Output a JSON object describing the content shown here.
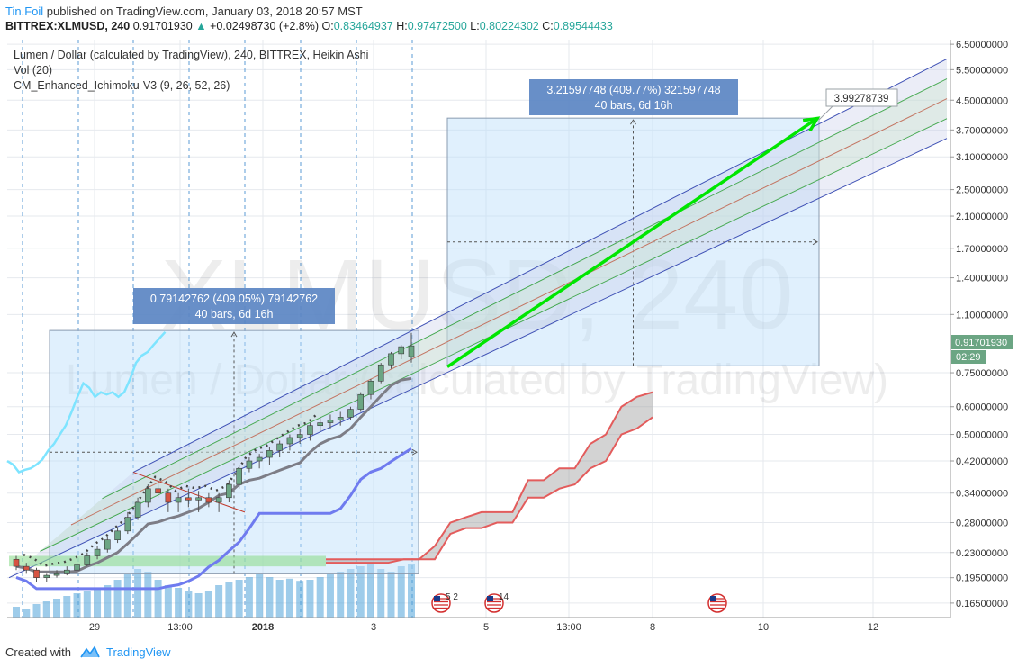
{
  "header": {
    "author": "Tin.Foil",
    "published_text": "published on TradingView.com, January 03, 2018 20:57 MST",
    "symbol": "BITTREX:XLMUSD, 240",
    "last": "0.91701930",
    "change_arrow": "▲",
    "change": "+0.02498730 (+2.8%)",
    "open_label": "O:",
    "open": "0.83464937",
    "high_label": "H:",
    "high": "0.97472500",
    "low_label": "L:",
    "low": "0.80224302",
    "close_label": "C:",
    "close": "0.89544433"
  },
  "legend": {
    "title": "Lumen / Dollar (calculated by TradingView), 240, BITTREX, Heikin Ashi",
    "vol": "Vol (20)",
    "ichimoku": "CM_Enhanced_Ichimoku-V3 (9, 26, 52, 26)"
  },
  "watermark": {
    "symbol": "XLMUSD, 240",
    "name": "Lumen / Dollar (calculated by TradingView)"
  },
  "price_axis": {
    "ticks": [
      "6.50000000",
      "5.50000000",
      "4.50000000",
      "3.70000000",
      "3.10000000",
      "2.50000000",
      "2.10000000",
      "1.70000000",
      "1.40000000",
      "1.10000000",
      "0.75000000",
      "0.60000000",
      "0.50000000",
      "0.42000000",
      "0.34000000",
      "0.28000000",
      "0.23000000",
      "0.19500000",
      "0.16500000"
    ],
    "current_price": "0.91701930",
    "countdown": "02:29"
  },
  "time_axis": {
    "ticks": [
      "29",
      "13:00",
      "2018",
      "3",
      "5",
      "13:00",
      "8",
      "10",
      "12"
    ]
  },
  "measurements": [
    {
      "line1": "0.79142762 (409.05%) 79142762",
      "line2": "40 bars, 6d 16h"
    },
    {
      "line1": "3.21597748 (409.77%) 321597748",
      "line2": "40 bars, 6d 16h"
    }
  ],
  "target_label": "3.99278739",
  "events": [
    {
      "icon": "us-flag-icon",
      "count": "5 2"
    },
    {
      "icon": "us-flag-icon",
      "count": "14"
    },
    {
      "icon": "us-flag-icon",
      "count": ""
    }
  ],
  "colors": {
    "bull": "#6ba583",
    "bear": "#d75442",
    "grid": "#e6e9ee",
    "channel": "#3f51b5",
    "accent": "#2196f3",
    "arrow": "#00e600",
    "cloud": "#e35c5c",
    "conversion": "#6f7bef",
    "lagging": "#7ee4ff"
  },
  "footer": {
    "created": "Created with",
    "brand": "TradingView"
  },
  "chart_data": {
    "type": "candlestick",
    "style": "Heikin Ashi",
    "scale": "log",
    "symbol": "BITTREX:XLMUSD",
    "interval": "240",
    "ylim": [
      0.15,
      6.7
    ],
    "yticks": [
      6.5,
      5.5,
      4.5,
      3.7,
      3.1,
      2.5,
      2.1,
      1.7,
      1.4,
      1.1,
      0.75,
      0.6,
      0.5,
      0.42,
      0.34,
      0.28,
      0.23,
      0.195,
      0.165
    ],
    "last_price": 0.9170193,
    "candles": [
      [
        0.22,
        0.225,
        0.205,
        0.21
      ],
      [
        0.21,
        0.215,
        0.2,
        0.205
      ],
      [
        0.205,
        0.208,
        0.19,
        0.195
      ],
      [
        0.195,
        0.2,
        0.19,
        0.198
      ],
      [
        0.198,
        0.205,
        0.195,
        0.2
      ],
      [
        0.2,
        0.21,
        0.198,
        0.205
      ],
      [
        0.205,
        0.215,
        0.2,
        0.212
      ],
      [
        0.212,
        0.23,
        0.21,
        0.225
      ],
      [
        0.225,
        0.24,
        0.22,
        0.235
      ],
      [
        0.235,
        0.255,
        0.23,
        0.25
      ],
      [
        0.25,
        0.27,
        0.245,
        0.265
      ],
      [
        0.265,
        0.3,
        0.26,
        0.29
      ],
      [
        0.29,
        0.33,
        0.285,
        0.32
      ],
      [
        0.32,
        0.36,
        0.31,
        0.35
      ],
      [
        0.35,
        0.37,
        0.33,
        0.34
      ],
      [
        0.34,
        0.35,
        0.3,
        0.32
      ],
      [
        0.32,
        0.34,
        0.3,
        0.33
      ],
      [
        0.33,
        0.35,
        0.31,
        0.325
      ],
      [
        0.325,
        0.345,
        0.3,
        0.33
      ],
      [
        0.33,
        0.34,
        0.31,
        0.32
      ],
      [
        0.32,
        0.34,
        0.3,
        0.33
      ],
      [
        0.33,
        0.37,
        0.32,
        0.36
      ],
      [
        0.36,
        0.41,
        0.35,
        0.4
      ],
      [
        0.4,
        0.43,
        0.39,
        0.42
      ],
      [
        0.42,
        0.44,
        0.4,
        0.43
      ],
      [
        0.43,
        0.46,
        0.41,
        0.45
      ],
      [
        0.45,
        0.48,
        0.43,
        0.47
      ],
      [
        0.47,
        0.5,
        0.45,
        0.49
      ],
      [
        0.49,
        0.52,
        0.47,
        0.5
      ],
      [
        0.5,
        0.54,
        0.48,
        0.53
      ],
      [
        0.53,
        0.56,
        0.51,
        0.54
      ],
      [
        0.54,
        0.57,
        0.52,
        0.55
      ],
      [
        0.55,
        0.58,
        0.53,
        0.56
      ],
      [
        0.56,
        0.6,
        0.55,
        0.59
      ],
      [
        0.59,
        0.66,
        0.58,
        0.65
      ],
      [
        0.65,
        0.72,
        0.63,
        0.71
      ],
      [
        0.71,
        0.8,
        0.7,
        0.79
      ],
      [
        0.79,
        0.86,
        0.77,
        0.85
      ],
      [
        0.85,
        0.9,
        0.82,
        0.89
      ],
      [
        0.834,
        0.975,
        0.802,
        0.895
      ]
    ],
    "volume": [
      0.2,
      0.15,
      0.25,
      0.3,
      0.35,
      0.4,
      0.45,
      0.5,
      0.55,
      0.6,
      0.7,
      0.8,
      0.9,
      0.85,
      0.7,
      0.6,
      0.55,
      0.5,
      0.45,
      0.5,
      0.6,
      0.65,
      0.7,
      0.75,
      0.8,
      0.75,
      0.7,
      0.72,
      0.68,
      0.7,
      0.75,
      0.8,
      0.85,
      0.9,
      0.95,
      1.0,
      0.9,
      0.85,
      0.95,
      1.0
    ],
    "channel": {
      "lower_start": 0.195,
      "lower_end": 3.5,
      "upper_start": 0.39,
      "upper_end": 5.9
    },
    "projection_arrow": {
      "from": 0.78,
      "to": 3.99278739
    },
    "measure_ranges": [
      {
        "from": 0.2,
        "to": 0.99,
        "change": 0.79142762,
        "percent": 409.05,
        "bars": 40
      },
      {
        "from": 0.785,
        "to": 4.0,
        "change": 3.21597748,
        "percent": 409.77,
        "bars": 40
      }
    ],
    "cloud_upper": [
      0.22,
      0.22,
      0.22,
      0.22,
      0.22,
      0.22,
      0.22,
      0.24,
      0.28,
      0.29,
      0.3,
      0.3,
      0.3,
      0.37,
      0.37,
      0.4,
      0.4,
      0.47,
      0.5,
      0.6,
      0.64,
      0.66
    ],
    "cloud_lower": [
      0.215,
      0.215,
      0.215,
      0.215,
      0.215,
      0.22,
      0.22,
      0.22,
      0.26,
      0.27,
      0.27,
      0.28,
      0.28,
      0.33,
      0.33,
      0.35,
      0.36,
      0.4,
      0.42,
      0.5,
      0.52,
      0.56
    ]
  }
}
